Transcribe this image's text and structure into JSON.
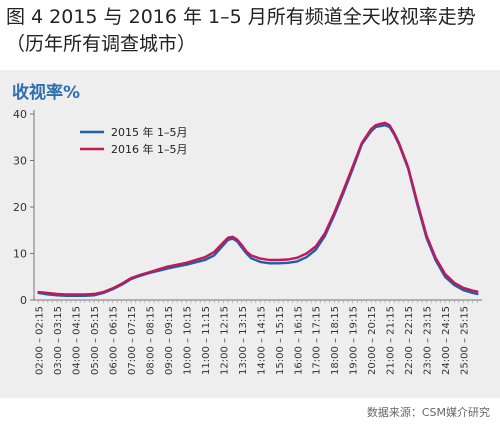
{
  "figure": {
    "title": "图 4 2015 与 2016 年 1–5 月所有频道全天收视率走势（历年所有调查城市）",
    "source": "数据来源：CSM媒介研究"
  },
  "chart_data": {
    "type": "line",
    "title": "",
    "ylabel": "收视率%",
    "xlabel": "",
    "ylim": [
      0,
      40
    ],
    "yticks": [
      0,
      10,
      20,
      30,
      40
    ],
    "grid": false,
    "legend_position": "top-left",
    "x_tick_labels": [
      "02:00 – 02:15",
      "03:00 – 03:15",
      "04:00 – 04:15",
      "05:00 – 05:15",
      "06:00 – 06:15",
      "07:00 – 07:15",
      "08:00 – 08:15",
      "09:00 – 09:15",
      "10:00 – 10:15",
      "11:00 – 11:15",
      "12:00 – 12:15",
      "13:00 – 13:15",
      "14:00 – 14:15",
      "15:00 – 15:15",
      "16:00 – 16:15",
      "17:00 – 17:15",
      "18:00 – 18:15",
      "19:00 – 19:15",
      "20:00 – 20:15",
      "21:00 – 21:15",
      "22:00 – 22:15",
      "23:00 – 23:15",
      "24:00 – 24:15",
      "25:00 – 25:15"
    ],
    "x": [
      2.0,
      2.5,
      3.0,
      3.5,
      4.0,
      4.5,
      5.0,
      5.5,
      6.0,
      6.5,
      7.0,
      7.5,
      8.0,
      8.5,
      9.0,
      9.5,
      10.0,
      10.5,
      11.0,
      11.5,
      12.0,
      12.25,
      12.5,
      12.75,
      13.0,
      13.25,
      13.5,
      14.0,
      14.5,
      15.0,
      15.5,
      16.0,
      16.5,
      17.0,
      17.5,
      18.0,
      18.5,
      19.0,
      19.5,
      20.0,
      20.25,
      20.5,
      20.75,
      21.0,
      21.25,
      21.5,
      22.0,
      22.5,
      23.0,
      23.5,
      24.0,
      24.5,
      25.0,
      25.5,
      25.75
    ],
    "series": [
      {
        "name": "2015 年 1–5月",
        "color": "#1f5fa8",
        "values": [
          1.5,
          1.2,
          1.0,
          0.9,
          0.9,
          0.9,
          1.0,
          1.5,
          2.3,
          3.3,
          4.5,
          5.2,
          5.8,
          6.3,
          6.8,
          7.2,
          7.6,
          8.1,
          8.6,
          9.6,
          11.8,
          12.9,
          13.2,
          12.6,
          11.3,
          10.0,
          9.0,
          8.2,
          7.9,
          7.9,
          8.0,
          8.3,
          9.2,
          10.8,
          13.8,
          18.2,
          23.0,
          28.2,
          33.5,
          36.3,
          37.2,
          37.4,
          37.6,
          37.2,
          35.6,
          33.5,
          28.3,
          20.5,
          13.3,
          8.5,
          5.0,
          3.2,
          2.1,
          1.5,
          1.3
        ]
      },
      {
        "name": "2016 年 1–5月",
        "color": "#c2185b",
        "values": [
          1.7,
          1.5,
          1.3,
          1.2,
          1.2,
          1.2,
          1.3,
          1.7,
          2.5,
          3.5,
          4.7,
          5.4,
          6.0,
          6.6,
          7.2,
          7.6,
          8.0,
          8.6,
          9.2,
          10.3,
          12.4,
          13.4,
          13.6,
          13.0,
          11.8,
          10.4,
          9.6,
          8.9,
          8.6,
          8.6,
          8.7,
          9.1,
          10.0,
          11.5,
          14.4,
          18.7,
          23.6,
          28.7,
          33.8,
          36.8,
          37.6,
          37.9,
          38.1,
          37.6,
          35.9,
          33.8,
          28.6,
          21.0,
          13.8,
          9.0,
          5.6,
          3.7,
          2.6,
          2.0,
          1.8
        ]
      }
    ]
  }
}
